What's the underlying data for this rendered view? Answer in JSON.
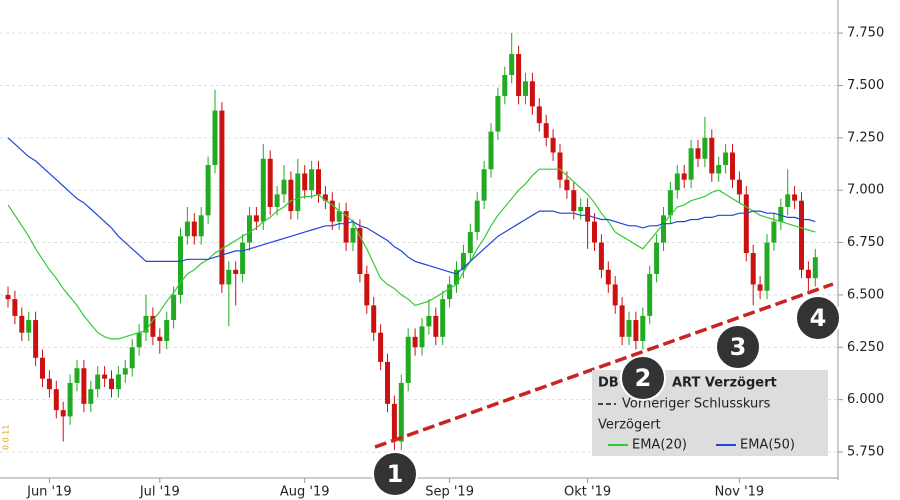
{
  "chart_data": {
    "type": "candlestick",
    "categories": [
      null,
      null,
      null,
      null,
      null,
      null,
      "Jun '19",
      null,
      null,
      null,
      null,
      null,
      null,
      null,
      null,
      null,
      null,
      null,
      null,
      null,
      null,
      null,
      "Jul '19",
      null,
      null,
      null,
      null,
      null,
      null,
      null,
      null,
      null,
      null,
      null,
      null,
      null,
      null,
      null,
      null,
      null,
      null,
      null,
      null,
      "Aug '19",
      null,
      null,
      null,
      null,
      null,
      null,
      null,
      null,
      null,
      null,
      null,
      null,
      null,
      null,
      null,
      null,
      null,
      null,
      null,
      null,
      "Sep '19",
      null,
      null,
      null,
      null,
      null,
      null,
      null,
      null,
      null,
      null,
      null,
      null,
      null,
      null,
      null,
      null,
      null,
      null,
      null,
      "Okt '19",
      null,
      null,
      null,
      null,
      null,
      null,
      null,
      null,
      null,
      null,
      null,
      null,
      null,
      null,
      null,
      null,
      null,
      null,
      null,
      null,
      null,
      "Nov '19",
      null,
      null,
      null,
      null,
      null,
      null,
      null,
      null,
      null,
      null,
      null
    ],
    "open": [
      6.5,
      6.48,
      6.4,
      6.32,
      6.38,
      6.2,
      6.1,
      6.05,
      5.95,
      5.92,
      6.08,
      6.15,
      5.98,
      6.05,
      6.12,
      6.1,
      6.05,
      6.12,
      6.15,
      6.25,
      6.32,
      6.4,
      6.3,
      6.28,
      6.38,
      6.5,
      6.78,
      6.85,
      6.78,
      6.88,
      7.12,
      7.38,
      6.55,
      6.62,
      6.6,
      6.75,
      6.88,
      6.85,
      7.15,
      6.92,
      6.98,
      7.05,
      6.9,
      7.08,
      7.0,
      7.1,
      6.98,
      6.95,
      6.85,
      6.9,
      6.75,
      6.82,
      6.6,
      6.45,
      6.32,
      6.18,
      5.98,
      5.8,
      6.08,
      6.3,
      6.25,
      6.35,
      6.4,
      6.3,
      6.48,
      6.55,
      6.62,
      6.7,
      6.8,
      6.95,
      7.1,
      7.28,
      7.45,
      7.55,
      7.65,
      7.45,
      7.52,
      7.4,
      7.32,
      7.25,
      7.18,
      7.05,
      7.0,
      6.9,
      6.92,
      6.85,
      6.75,
      6.62,
      6.55,
      6.45,
      6.3,
      6.38,
      6.28,
      6.4,
      6.6,
      6.75,
      6.88,
      7.0,
      7.08,
      7.05,
      7.2,
      7.15,
      7.25,
      7.08,
      7.12,
      7.18,
      7.05,
      6.98,
      6.7,
      6.55,
      6.52,
      6.75,
      6.85,
      6.92,
      6.98,
      6.95,
      6.62,
      6.58
    ],
    "high": [
      6.54,
      6.52,
      6.44,
      6.42,
      6.42,
      6.24,
      6.14,
      6.09,
      5.99,
      6.12,
      6.19,
      6.19,
      6.09,
      6.16,
      6.16,
      6.14,
      6.16,
      6.19,
      6.29,
      6.36,
      6.5,
      6.44,
      6.34,
      6.42,
      6.54,
      6.82,
      6.92,
      6.89,
      6.92,
      7.16,
      7.48,
      7.42,
      6.66,
      6.66,
      6.79,
      6.92,
      6.92,
      7.22,
      7.19,
      7.02,
      7.12,
      7.09,
      7.15,
      7.12,
      7.14,
      7.14,
      7.02,
      6.99,
      6.94,
      6.94,
      6.86,
      6.86,
      6.64,
      6.49,
      6.36,
      6.22,
      6.02,
      6.12,
      6.34,
      6.34,
      6.39,
      6.48,
      6.44,
      6.52,
      6.59,
      6.66,
      6.74,
      6.84,
      6.99,
      7.14,
      7.32,
      7.49,
      7.59,
      7.75,
      7.69,
      7.56,
      7.56,
      7.44,
      7.36,
      7.29,
      7.22,
      7.09,
      7.04,
      6.96,
      6.96,
      6.89,
      6.79,
      6.66,
      6.59,
      6.49,
      6.42,
      6.42,
      6.44,
      6.64,
      6.79,
      6.92,
      7.04,
      7.12,
      7.12,
      7.24,
      7.24,
      7.35,
      7.29,
      7.16,
      7.22,
      7.22,
      7.09,
      7.02,
      6.74,
      6.59,
      6.79,
      6.89,
      6.96,
      7.1,
      7.02,
      6.99,
      6.66,
      6.72
    ],
    "low": [
      6.44,
      6.36,
      6.28,
      6.28,
      6.16,
      6.06,
      6.01,
      5.91,
      5.8,
      5.88,
      6.04,
      5.94,
      5.94,
      6.01,
      6.06,
      6.01,
      6.01,
      6.08,
      6.11,
      6.21,
      6.28,
      6.26,
      6.22,
      6.24,
      6.34,
      6.46,
      6.74,
      6.74,
      6.74,
      6.84,
      7.08,
      6.51,
      6.35,
      6.45,
      6.56,
      6.71,
      6.81,
      6.81,
      6.88,
      6.88,
      6.94,
      6.86,
      6.86,
      6.96,
      6.96,
      6.94,
      6.91,
      6.81,
      6.81,
      6.71,
      6.71,
      6.56,
      6.41,
      6.28,
      6.14,
      5.94,
      5.76,
      5.76,
      6.04,
      6.21,
      6.21,
      6.31,
      6.26,
      6.26,
      6.44,
      6.51,
      6.58,
      6.66,
      6.76,
      6.91,
      7.06,
      7.24,
      7.41,
      7.51,
      7.41,
      7.41,
      7.36,
      7.28,
      7.21,
      7.14,
      7.01,
      6.96,
      6.86,
      6.86,
      6.72,
      6.71,
      6.58,
      6.51,
      6.41,
      6.26,
      6.26,
      6.24,
      6.24,
      6.36,
      6.56,
      6.71,
      6.84,
      6.96,
      7.01,
      7.01,
      7.11,
      7.11,
      7.04,
      7.04,
      7.08,
      7.01,
      6.94,
      6.66,
      6.45,
      6.48,
      6.48,
      6.71,
      6.81,
      6.88,
      6.91,
      6.58,
      6.52,
      6.54
    ],
    "close": [
      6.48,
      6.4,
      6.32,
      6.38,
      6.2,
      6.1,
      6.05,
      5.95,
      5.92,
      6.08,
      6.15,
      5.98,
      6.05,
      6.12,
      6.1,
      6.05,
      6.12,
      6.15,
      6.25,
      6.32,
      6.4,
      6.3,
      6.28,
      6.38,
      6.5,
      6.78,
      6.85,
      6.78,
      6.88,
      7.12,
      7.38,
      6.55,
      6.62,
      6.6,
      6.75,
      6.88,
      6.85,
      7.15,
      6.92,
      6.98,
      7.05,
      6.9,
      7.08,
      7.0,
      7.1,
      6.98,
      6.95,
      6.85,
      6.9,
      6.75,
      6.82,
      6.6,
      6.45,
      6.32,
      6.18,
      5.98,
      5.8,
      6.08,
      6.3,
      6.25,
      6.35,
      6.4,
      6.3,
      6.48,
      6.55,
      6.62,
      6.7,
      6.8,
      6.95,
      7.1,
      7.28,
      7.45,
      7.55,
      7.65,
      7.45,
      7.52,
      7.4,
      7.32,
      7.25,
      7.18,
      7.05,
      7.0,
      6.9,
      6.92,
      6.85,
      6.75,
      6.62,
      6.55,
      6.45,
      6.3,
      6.38,
      6.28,
      6.4,
      6.6,
      6.75,
      6.88,
      7.0,
      7.08,
      7.05,
      7.2,
      7.15,
      7.25,
      7.08,
      7.12,
      7.18,
      7.05,
      6.98,
      6.7,
      6.55,
      6.52,
      6.75,
      6.85,
      6.92,
      6.98,
      6.95,
      6.62,
      6.58,
      6.68
    ],
    "up_color": "#22aa22",
    "down_color": "#cc1111",
    "series": [
      {
        "name": "EMA(20)",
        "color": "#33cc33",
        "values": [
          6.93,
          6.88,
          6.83,
          6.78,
          6.72,
          6.67,
          6.62,
          6.58,
          6.53,
          6.49,
          6.45,
          6.4,
          6.36,
          6.32,
          6.3,
          6.29,
          6.29,
          6.3,
          6.31,
          6.32,
          6.33,
          6.38,
          6.42,
          6.47,
          6.51,
          6.56,
          6.6,
          6.62,
          6.65,
          6.67,
          6.7,
          6.72,
          6.74,
          6.76,
          6.78,
          6.8,
          6.82,
          6.85,
          6.87,
          6.9,
          6.92,
          6.95,
          6.96,
          6.97,
          6.97,
          6.98,
          6.95,
          6.93,
          6.9,
          6.88,
          6.85,
          6.78,
          6.72,
          6.65,
          6.58,
          6.55,
          6.53,
          6.5,
          6.48,
          6.45,
          6.46,
          6.47,
          6.49,
          6.51,
          6.53,
          6.55,
          6.61,
          6.66,
          6.72,
          6.77,
          6.83,
          6.88,
          6.92,
          6.96,
          7.0,
          7.03,
          7.07,
          7.1,
          7.1,
          7.1,
          7.1,
          7.07,
          7.04,
          7.01,
          6.98,
          6.94,
          6.89,
          6.85,
          6.8,
          6.78,
          6.76,
          6.74,
          6.72,
          6.76,
          6.8,
          6.84,
          6.88,
          6.92,
          6.93,
          6.95,
          6.96,
          6.97,
          6.99,
          7.0,
          6.98,
          6.96,
          6.94,
          6.92,
          6.9,
          6.88,
          6.87,
          6.86,
          6.85,
          6.84,
          6.83,
          6.82,
          6.81,
          6.8
        ]
      },
      {
        "name": "EMA(50)",
        "color": "#2244dd",
        "values": [
          7.25,
          7.22,
          7.19,
          7.16,
          7.14,
          7.11,
          7.08,
          7.05,
          7.02,
          6.99,
          6.96,
          6.94,
          6.91,
          6.88,
          6.85,
          6.82,
          6.78,
          6.75,
          6.72,
          6.69,
          6.66,
          6.66,
          6.66,
          6.66,
          6.66,
          6.66,
          6.67,
          6.67,
          6.67,
          6.67,
          6.68,
          6.69,
          6.7,
          6.71,
          6.71,
          6.72,
          6.73,
          6.74,
          6.75,
          6.76,
          6.77,
          6.78,
          6.79,
          6.8,
          6.81,
          6.82,
          6.83,
          6.83,
          6.84,
          6.84,
          6.85,
          6.83,
          6.82,
          6.8,
          6.78,
          6.76,
          6.73,
          6.71,
          6.68,
          6.66,
          6.65,
          6.64,
          6.63,
          6.62,
          6.61,
          6.6,
          6.63,
          6.66,
          6.69,
          6.72,
          6.75,
          6.78,
          6.8,
          6.82,
          6.84,
          6.86,
          6.88,
          6.9,
          6.9,
          6.9,
          6.89,
          6.89,
          6.89,
          6.88,
          6.88,
          6.87,
          6.86,
          6.86,
          6.85,
          6.84,
          6.83,
          6.83,
          6.82,
          6.83,
          6.83,
          6.84,
          6.84,
          6.85,
          6.85,
          6.86,
          6.86,
          6.87,
          6.87,
          6.88,
          6.88,
          6.88,
          6.89,
          6.89,
          6.9,
          6.9,
          6.89,
          6.89,
          6.88,
          6.87,
          6.87,
          6.86,
          6.86,
          6.85
        ]
      }
    ],
    "ylim": [
      5.626,
      7.908
    ],
    "yticks": [
      {
        "value": 5.75,
        "label": "5.750"
      },
      {
        "value": 6.0,
        "label": "6.000"
      },
      {
        "value": 6.25,
        "label": "6.250"
      },
      {
        "value": 6.5,
        "label": "6.500"
      },
      {
        "value": 6.75,
        "label": "6.750"
      },
      {
        "value": 7.0,
        "label": "7.000"
      },
      {
        "value": 7.25,
        "label": "7.250"
      },
      {
        "value": 7.5,
        "label": "7.500"
      },
      {
        "value": 7.75,
        "label": "7.750"
      }
    ],
    "grid": true,
    "legend": {
      "title_start": "DB",
      "title_end": "ART Verzögert",
      "previous_close": "Vorheriger Schlusskurs",
      "group": "Verzögert"
    },
    "annotations": [
      "1",
      "2",
      "3",
      "4"
    ],
    "watermark": "0.0.11"
  }
}
